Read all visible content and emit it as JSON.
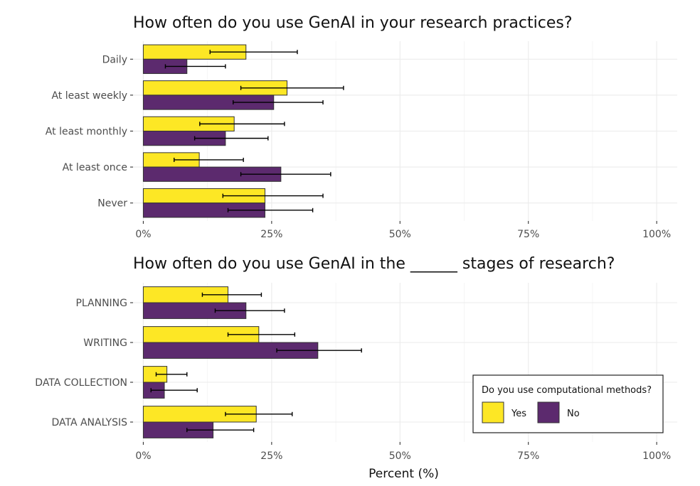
{
  "chart_data": [
    {
      "type": "bar",
      "orientation": "horizontal",
      "title": "How often do you use GenAI in your research practices?",
      "categories": [
        "Daily",
        "At least weekly",
        "At least monthly",
        "At least once",
        "Never"
      ],
      "series": [
        {
          "name": "Yes",
          "color": "#fde725",
          "values": [
            20,
            28,
            17.7,
            10.9,
            23.7
          ],
          "error_low": [
            13,
            19,
            11,
            6,
            15.5
          ],
          "error_high": [
            30,
            39,
            27.5,
            19.5,
            35
          ]
        },
        {
          "name": "No",
          "color": "#5c2a6e",
          "values": [
            8.5,
            25.4,
            16,
            26.8,
            23.7
          ],
          "error_low": [
            4.3,
            17.5,
            10,
            19,
            16.5
          ],
          "error_high": [
            16,
            35,
            24.3,
            36.5,
            33
          ]
        }
      ],
      "xticks": [
        "0%",
        "25%",
        "50%",
        "75%",
        "100%"
      ],
      "xlim": [
        -2,
        104
      ],
      "grid": true
    },
    {
      "type": "bar",
      "orientation": "horizontal",
      "title": "How often do you use GenAI in the ______ stages of research?",
      "categories": [
        "PLANNING",
        "WRITING",
        "DATA COLLECTION",
        "DATA ANALYSIS"
      ],
      "series": [
        {
          "name": "Yes",
          "color": "#fde725",
          "values": [
            16.5,
            22.5,
            4.6,
            22
          ],
          "error_low": [
            11.5,
            16.5,
            2.5,
            16
          ],
          "error_high": [
            23,
            29.5,
            8.5,
            29
          ]
        },
        {
          "name": "No",
          "color": "#5c2a6e",
          "values": [
            20,
            34,
            4.1,
            13.6
          ],
          "error_low": [
            14,
            26,
            1.5,
            8.5
          ],
          "error_high": [
            27.5,
            42.5,
            10.5,
            21.5
          ]
        }
      ],
      "xticks": [
        "0%",
        "25%",
        "50%",
        "75%",
        "100%"
      ],
      "xlim": [
        -2,
        104
      ],
      "xlabel": "Percent (%)",
      "grid": true
    }
  ],
  "legend": {
    "title": "Do you use computational methods?",
    "items": [
      {
        "label": "Yes",
        "color": "#fde725"
      },
      {
        "label": "No",
        "color": "#5c2a6e"
      }
    ],
    "placement": "bottom-right"
  }
}
